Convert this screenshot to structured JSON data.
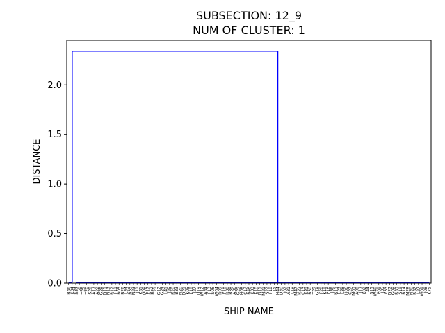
{
  "chart_data": {
    "type": "dendrogram",
    "title_lines": [
      "SUBSECTION: 12_9",
      "NUM OF CLUSTER: 1"
    ],
    "xlabel": "SHIP NAME",
    "ylabel": "DISTANCE",
    "ylim": [
      0,
      2.45
    ],
    "yticks": [
      0.0,
      0.5,
      1.0,
      1.5,
      2.0
    ],
    "ytick_labels": [
      "0.0",
      "0.5",
      "1.0",
      "1.5",
      "2.0"
    ],
    "link_color": "#0000ff",
    "leaves": [
      "B36",
      "K34",
      "S34",
      "T50",
      "T25",
      "T20",
      "S28",
      "A17",
      "A22",
      "G28",
      "D11",
      "N13",
      "R12",
      "F11",
      "B05",
      "B26",
      "L34",
      "B35",
      "N23",
      "J11",
      "K31",
      "D09",
      "E17",
      "B52",
      "T21",
      "G12",
      "G24",
      "L41",
      "J25",
      "R20",
      "B33",
      "N20",
      "D21",
      "K05",
      "E18",
      "J27",
      "D19",
      "W12",
      "A34",
      "F13",
      "S06",
      "W04",
      "R09",
      "P18",
      "R30",
      "B38",
      "A36",
      "G29",
      "H08",
      "C17",
      "B46",
      "K33",
      "E10",
      "N11",
      "M21",
      "S22",
      "F18",
      "T15",
      "H44",
      "D30",
      "J02",
      "A31",
      "L19",
      "M47",
      "R22",
      "C13",
      "S31",
      "B30",
      "T29",
      "G18",
      "F20",
      "K19",
      "P16",
      "J36",
      "R15",
      "E23",
      "L38",
      "H06",
      "C27",
      "M03",
      "A08",
      "J17",
      "K02",
      "T44",
      "S15",
      "W40",
      "P09",
      "J35",
      "F33",
      "D27",
      "G09",
      "R33",
      "S19",
      "B14",
      "M28",
      "N30",
      "R32",
      "L27",
      "W09",
      "J08",
      "K75"
    ],
    "clusters": [
      {
        "leaf_range": [
          0,
          1
        ],
        "height": 0.005
      },
      {
        "leaf_range": [
          2,
          100
        ],
        "height": 0.005
      },
      {
        "merge_leaves": [
          1,
          58
        ],
        "height": 2.34
      }
    ]
  }
}
